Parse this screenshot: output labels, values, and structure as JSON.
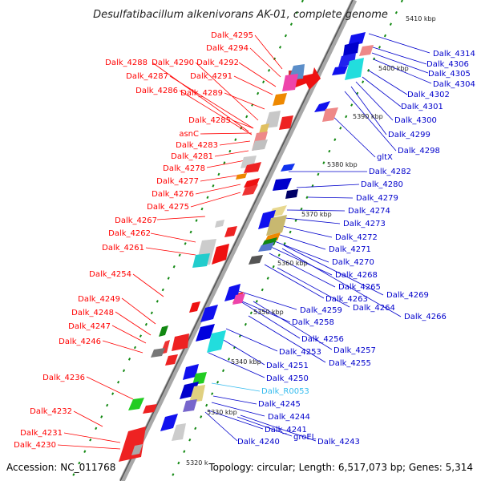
{
  "title": "Desulfatibacillum alkenivorans AK-01, complete genome",
  "footer": {
    "accession": "Accession: NC_011768",
    "topology": "Topology: circular; Length: 6,517,073 bp; Genes: 5,314"
  },
  "colors": {
    "backbone": "#a8a8a8",
    "forward_label": "#ff0000",
    "reverse_label": "#0000cc",
    "rna_label": "#33bbee",
    "tick": "#118811"
  },
  "kbp_labels": [
    "5410 kbp",
    "5400 kbp",
    "5390 kbp",
    "5380 kbp",
    "5370 kbp",
    "5360 kbp",
    "5350 kbp",
    "5340 kbp",
    "5330 kbp",
    "5320 k"
  ],
  "forward_genes": [
    "Dalk_4295",
    "Dalk_4294",
    "Dalk_4288",
    "Dalk_4290",
    "Dalk_4292",
    "Dalk_4287",
    "Dalk_4291",
    "Dalk_4286",
    "Dalk_4289",
    "Dalk_4285",
    "asnC",
    "Dalk_4283",
    "Dalk_4281",
    "Dalk_4278",
    "Dalk_4277",
    "Dalk_4276",
    "Dalk_4275",
    "Dalk_4267",
    "Dalk_4262",
    "Dalk_4261",
    "Dalk_4254",
    "Dalk_4249",
    "Dalk_4248",
    "Dalk_4247",
    "Dalk_4246",
    "Dalk_4236",
    "Dalk_4232",
    "Dalk_4231",
    "Dalk_4230"
  ],
  "reverse_genes": [
    "Dalk_4314",
    "Dalk_4306",
    "Dalk_4305",
    "Dalk_4304",
    "Dalk_4302",
    "Dalk_4301",
    "Dalk_4300",
    "Dalk_4299",
    "Dalk_4298",
    "gltX",
    "Dalk_4282",
    "Dalk_4280",
    "Dalk_4279",
    "Dalk_4274",
    "Dalk_4273",
    "Dalk_4272",
    "Dalk_4271",
    "Dalk_4270",
    "Dalk_4268",
    "Dalk_4265",
    "Dalk_4269",
    "Dalk_4263",
    "Dalk_4264",
    "Dalk_4266",
    "Dalk_4259",
    "Dalk_4258",
    "Dalk_4256",
    "Dalk_4257",
    "Dalk_4253",
    "Dalk_4255",
    "Dalk_4251",
    "Dalk_4250",
    "Dalk_4245",
    "Dalk_4244",
    "Dalk_4241",
    "groEL",
    "Dalk_4243",
    "Dalk_4240"
  ],
  "rna_genes": [
    "Dalk_R0053"
  ]
}
